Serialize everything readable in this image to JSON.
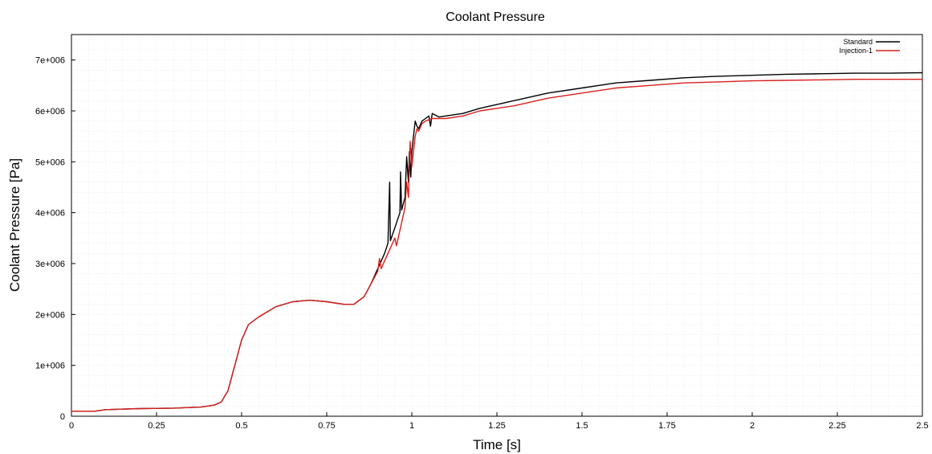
{
  "chart_data": {
    "type": "line",
    "title": "Coolant Pressure",
    "xlabel": "Time [s]",
    "ylabel": "Coolant Pressure [Pa]",
    "xlim": [
      0,
      2.5
    ],
    "ylim": [
      0,
      7500000
    ],
    "x_ticks": [
      0,
      0.25,
      0.5,
      0.75,
      1,
      1.25,
      1.5,
      1.75,
      2,
      2.25,
      2.5
    ],
    "x_tick_labels": [
      "0",
      "0.25",
      "0.5",
      "0.75",
      "1",
      "1.25",
      "1.5",
      "1.75",
      "2",
      "2.25",
      "2.5"
    ],
    "y_ticks": [
      0,
      1000000,
      2000000,
      3000000,
      4000000,
      5000000,
      6000000,
      7000000
    ],
    "y_tick_labels": [
      "0",
      "1e+006",
      "2e+006",
      "3e+006",
      "4e+006",
      "5e+006",
      "6e+006",
      "7e+006"
    ],
    "grid": true,
    "legend_position": "top-right",
    "series": [
      {
        "name": "Standard",
        "color": "#000000",
        "points": [
          [
            0,
            100000
          ],
          [
            0.07,
            100000
          ],
          [
            0.1,
            130000
          ],
          [
            0.2,
            150000
          ],
          [
            0.3,
            160000
          ],
          [
            0.38,
            180000
          ],
          [
            0.42,
            220000
          ],
          [
            0.44,
            280000
          ],
          [
            0.46,
            500000
          ],
          [
            0.48,
            1000000
          ],
          [
            0.5,
            1500000
          ],
          [
            0.52,
            1800000
          ],
          [
            0.55,
            1950000
          ],
          [
            0.6,
            2150000
          ],
          [
            0.65,
            2250000
          ],
          [
            0.7,
            2280000
          ],
          [
            0.75,
            2250000
          ],
          [
            0.8,
            2200000
          ],
          [
            0.83,
            2200000
          ],
          [
            0.86,
            2350000
          ],
          [
            0.88,
            2600000
          ],
          [
            0.9,
            2900000
          ],
          [
            0.92,
            3200000
          ],
          [
            0.93,
            3400000
          ],
          [
            0.935,
            4600000
          ],
          [
            0.937,
            3450000
          ],
          [
            0.95,
            3700000
          ],
          [
            0.965,
            4000000
          ],
          [
            0.967,
            4800000
          ],
          [
            0.97,
            4050000
          ],
          [
            0.98,
            4300000
          ],
          [
            0.985,
            5100000
          ],
          [
            0.99,
            4600000
          ],
          [
            0.993,
            5200000
          ],
          [
            0.997,
            4700000
          ],
          [
            1.0,
            5200000
          ],
          [
            1.005,
            5500000
          ],
          [
            1.01,
            5800000
          ],
          [
            1.015,
            5700000
          ],
          [
            1.02,
            5650000
          ],
          [
            1.03,
            5800000
          ],
          [
            1.04,
            5850000
          ],
          [
            1.05,
            5900000
          ],
          [
            1.055,
            5700000
          ],
          [
            1.06,
            5950000
          ],
          [
            1.08,
            5880000
          ],
          [
            1.1,
            5900000
          ],
          [
            1.15,
            5950000
          ],
          [
            1.2,
            6050000
          ],
          [
            1.3,
            6200000
          ],
          [
            1.4,
            6350000
          ],
          [
            1.5,
            6450000
          ],
          [
            1.6,
            6550000
          ],
          [
            1.7,
            6600000
          ],
          [
            1.8,
            6650000
          ],
          [
            1.9,
            6680000
          ],
          [
            2.0,
            6700000
          ],
          [
            2.1,
            6720000
          ],
          [
            2.2,
            6730000
          ],
          [
            2.3,
            6740000
          ],
          [
            2.4,
            6740000
          ],
          [
            2.5,
            6750000
          ]
        ]
      },
      {
        "name": "Injection-1",
        "color": "#d9201c",
        "points": [
          [
            0,
            100000
          ],
          [
            0.07,
            100000
          ],
          [
            0.1,
            130000
          ],
          [
            0.2,
            150000
          ],
          [
            0.3,
            160000
          ],
          [
            0.38,
            180000
          ],
          [
            0.42,
            220000
          ],
          [
            0.44,
            280000
          ],
          [
            0.46,
            500000
          ],
          [
            0.48,
            1000000
          ],
          [
            0.5,
            1500000
          ],
          [
            0.52,
            1800000
          ],
          [
            0.55,
            1950000
          ],
          [
            0.6,
            2150000
          ],
          [
            0.65,
            2250000
          ],
          [
            0.7,
            2280000
          ],
          [
            0.75,
            2250000
          ],
          [
            0.8,
            2200000
          ],
          [
            0.83,
            2200000
          ],
          [
            0.86,
            2350000
          ],
          [
            0.88,
            2600000
          ],
          [
            0.9,
            2850000
          ],
          [
            0.905,
            3100000
          ],
          [
            0.91,
            2900000
          ],
          [
            0.93,
            3200000
          ],
          [
            0.95,
            3500000
          ],
          [
            0.955,
            3350000
          ],
          [
            0.97,
            3800000
          ],
          [
            0.98,
            4100000
          ],
          [
            0.985,
            4600000
          ],
          [
            0.99,
            4300000
          ],
          [
            0.995,
            5400000
          ],
          [
            1.0,
            4900000
          ],
          [
            1.005,
            5200000
          ],
          [
            1.01,
            5500000
          ],
          [
            1.015,
            5650000
          ],
          [
            1.02,
            5600000
          ],
          [
            1.03,
            5750000
          ],
          [
            1.04,
            5800000
          ],
          [
            1.06,
            5850000
          ],
          [
            1.08,
            5850000
          ],
          [
            1.1,
            5850000
          ],
          [
            1.15,
            5900000
          ],
          [
            1.2,
            6000000
          ],
          [
            1.3,
            6100000
          ],
          [
            1.4,
            6250000
          ],
          [
            1.5,
            6350000
          ],
          [
            1.6,
            6450000
          ],
          [
            1.7,
            6500000
          ],
          [
            1.8,
            6550000
          ],
          [
            1.9,
            6570000
          ],
          [
            2.0,
            6590000
          ],
          [
            2.1,
            6600000
          ],
          [
            2.2,
            6610000
          ],
          [
            2.3,
            6620000
          ],
          [
            2.4,
            6620000
          ],
          [
            2.5,
            6620000
          ]
        ]
      }
    ]
  }
}
